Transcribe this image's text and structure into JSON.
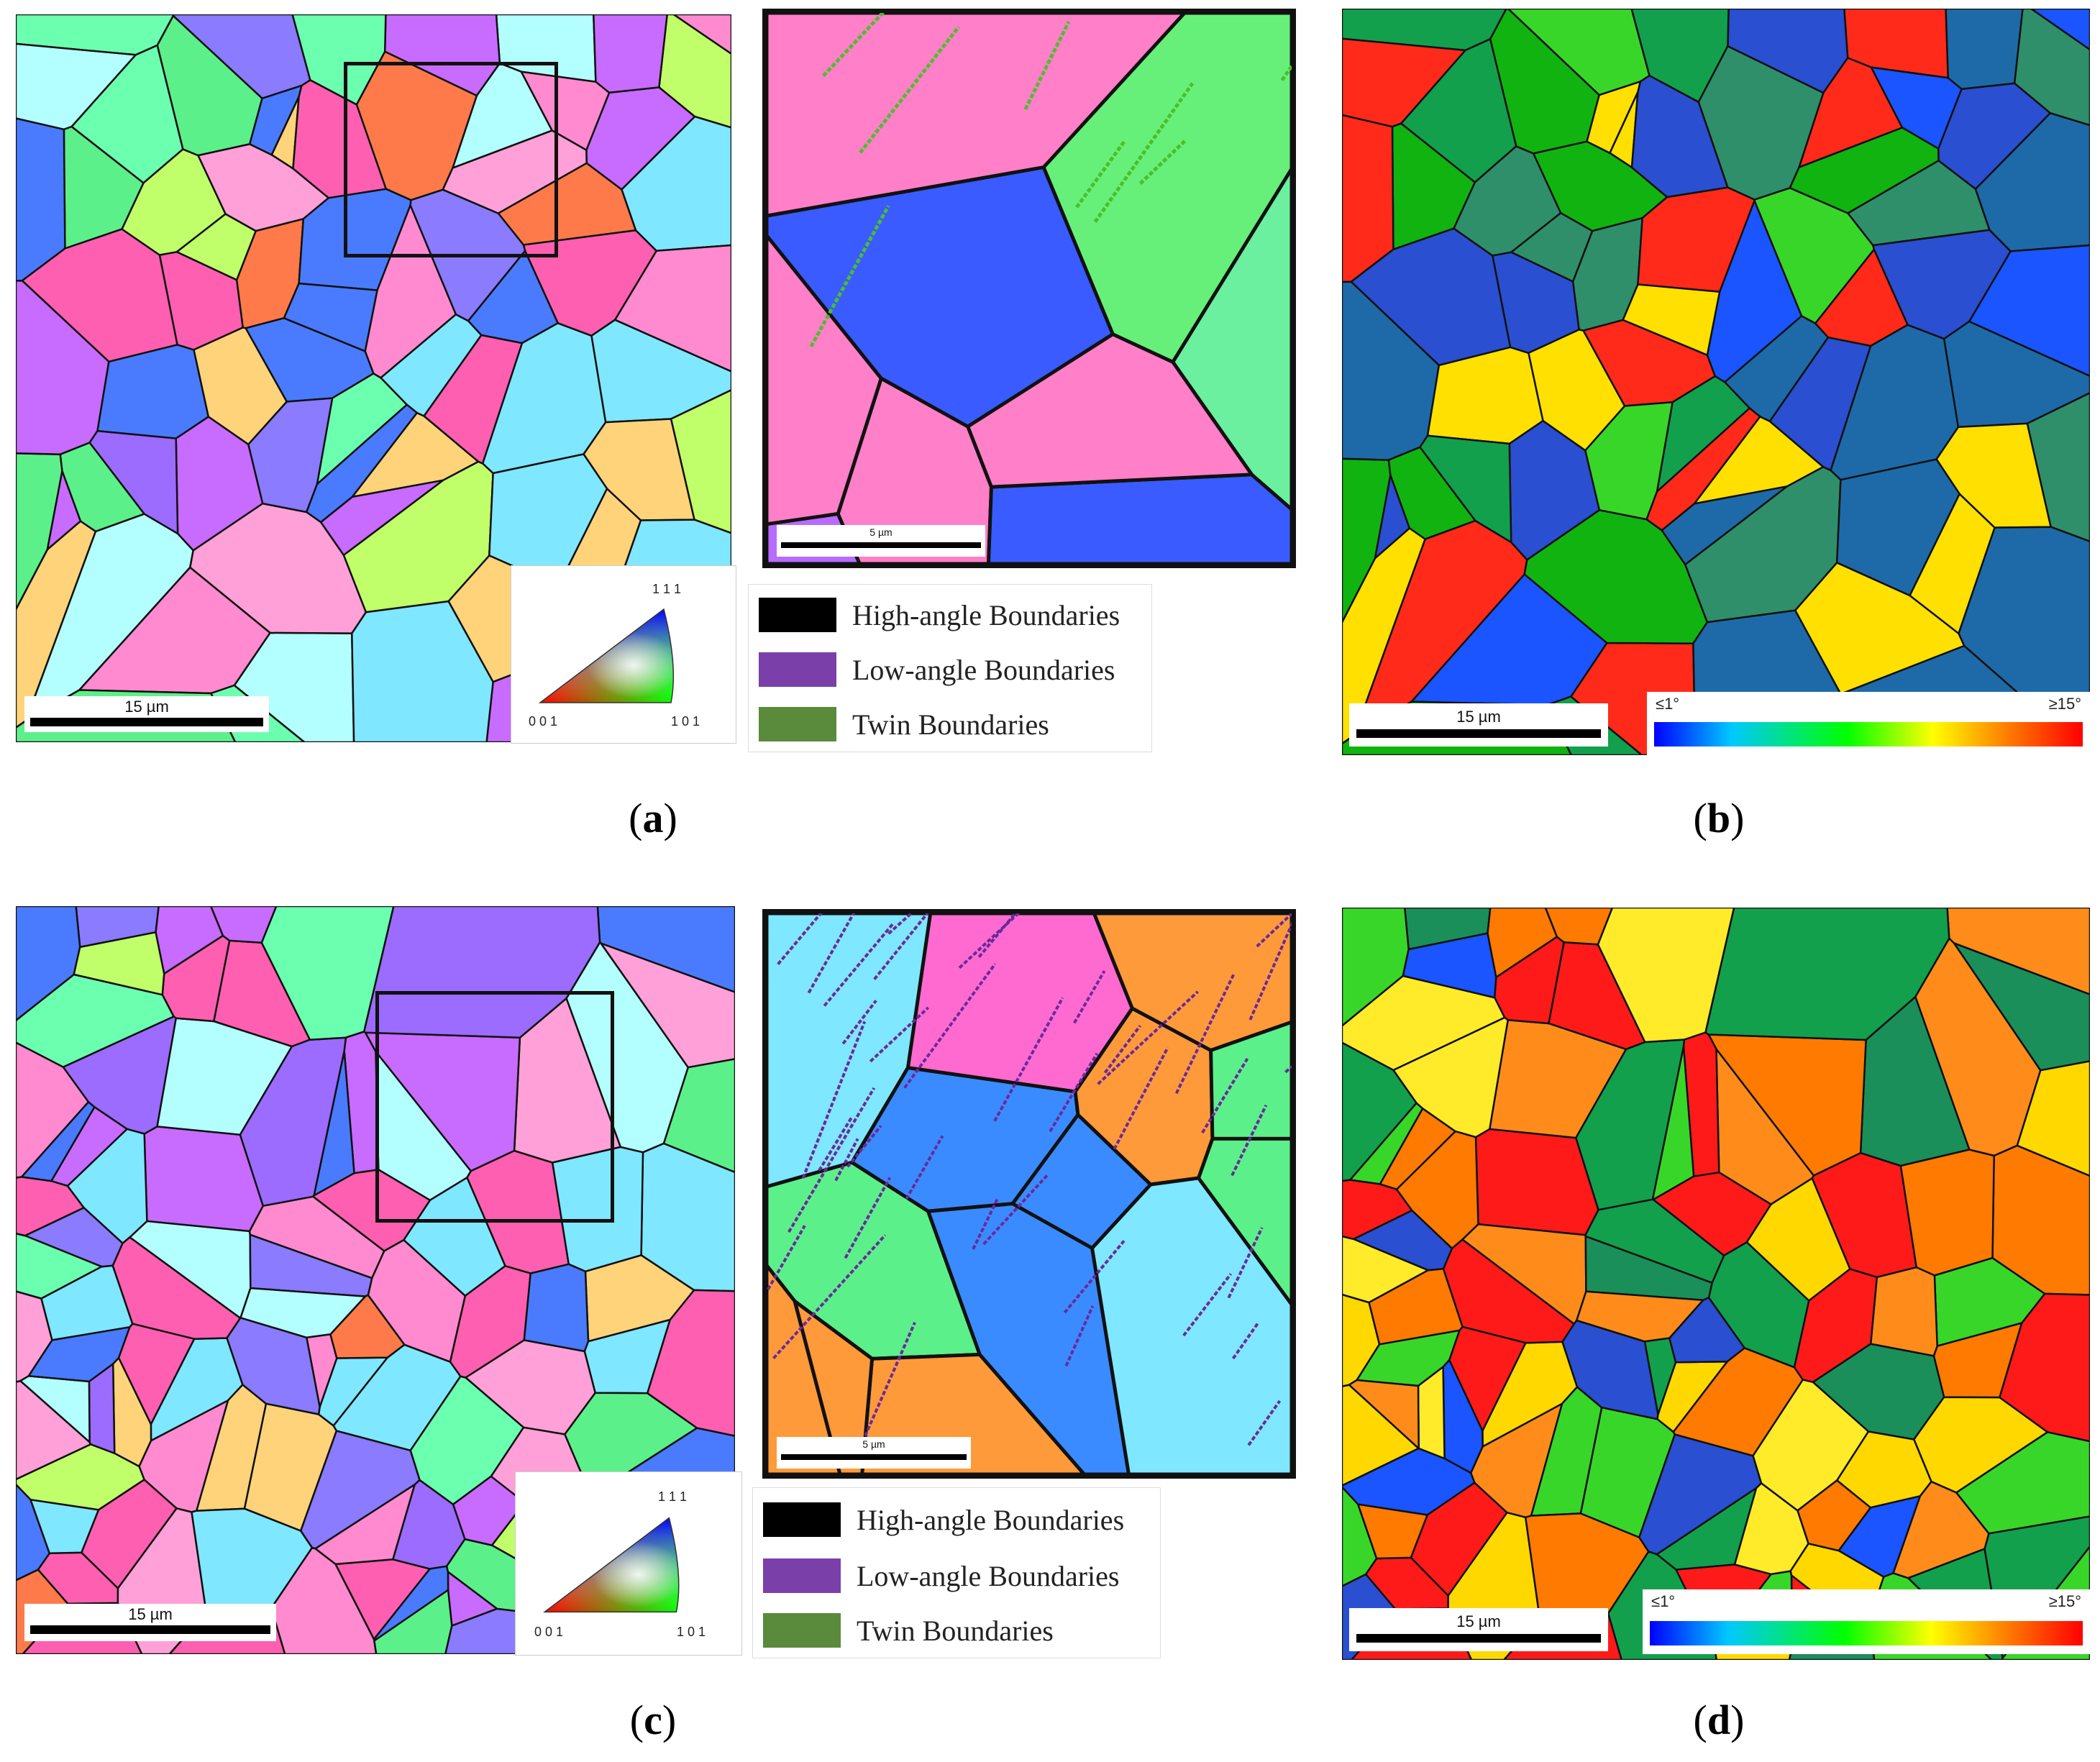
{
  "panels": {
    "a": {
      "caption": "a",
      "scale_label": "15 µm",
      "zoom_scale_label": "5 µm",
      "ipf_ticks": {
        "top": "1 1 1",
        "left": "0 0 1",
        "right": "1 0 1"
      }
    },
    "b": {
      "caption": "b",
      "scale_label": "15 µm",
      "kam_min": "≤1°",
      "kam_max": "≥15°"
    },
    "c": {
      "caption": "c",
      "scale_label": "15 µm",
      "zoom_scale_label": "5 µm",
      "ipf_ticks": {
        "top": "1 1 1",
        "left": "0 0 1",
        "right": "1 0 1"
      }
    },
    "d": {
      "caption": "d",
      "scale_label": "15 µm",
      "kam_min": "≤1°",
      "kam_max": "≥15°"
    }
  },
  "legend": {
    "items": [
      {
        "label": "High-angle Boundaries",
        "color": "#000000"
      },
      {
        "label": "Low-angle Boundaries",
        "color": "#7a3fa8"
      },
      {
        "label": "Twin Boundaries",
        "color": "#5a8a3c"
      }
    ]
  },
  "colors": {
    "ipf_palette": [
      "#ff5fb0",
      "#c86bff",
      "#7fe7ff",
      "#5cf08a",
      "#ffa0d8",
      "#8a7bff",
      "#ff7a4a",
      "#c0ff6a",
      "#ffd37a",
      "#4a7bff",
      "#b3ffff",
      "#ff8ad0",
      "#9c6bff",
      "#6bffb0"
    ],
    "kam_b_palette": [
      "#2a4fd0",
      "#1e6aa8",
      "#11b311",
      "#39d62a",
      "#2f8f6a",
      "#ffe000",
      "#ff2a1a",
      "#1a55ff",
      "#12a04c"
    ],
    "kam_d_palette": [
      "#ff1a1a",
      "#ff7a00",
      "#ffd800",
      "#1a8f5a",
      "#2a4fd0",
      "#1a55ff",
      "#39d62a",
      "#ff8c1a",
      "#12a04c",
      "#ffeb2a"
    ]
  }
}
